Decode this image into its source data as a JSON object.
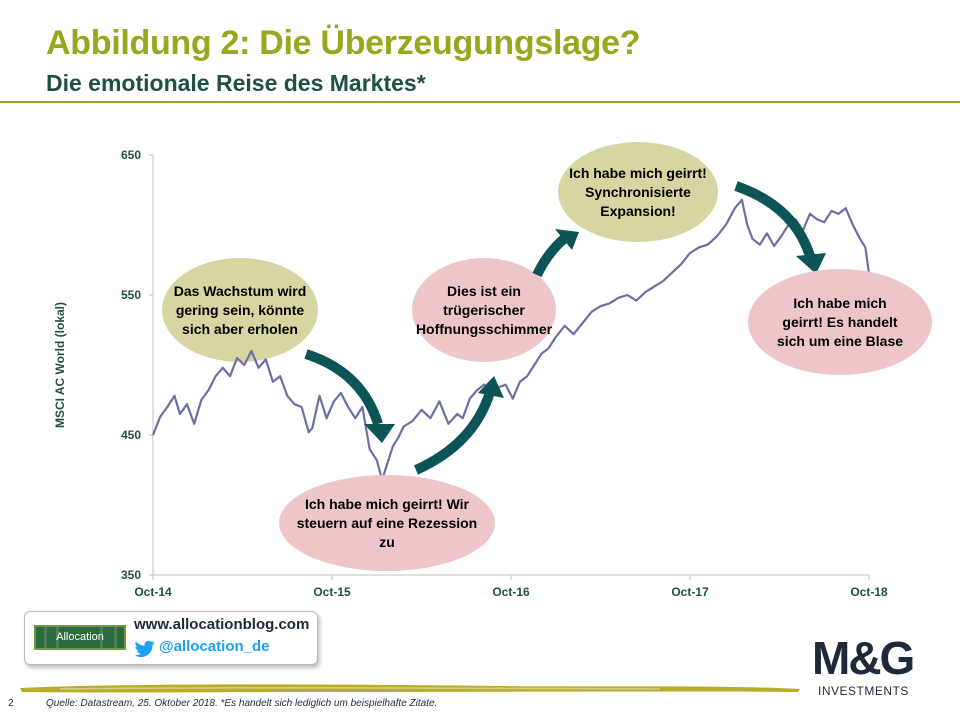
{
  "page": {
    "title": "Abbildung 2: Die Überzeugungslage?",
    "subtitle": "Die emotionale Reise des Marktes*",
    "page_number": "2",
    "source_note": "Quelle: Datastream, 25. Oktober 2018. *Es handelt sich lediglich um beispielhafte Zitate."
  },
  "footer": {
    "blog_url": "www.allocationblog.com",
    "twitter_handle": "@allocation_de",
    "allocation_logo_text": "Allocation",
    "brand_logo_text": "M&G",
    "brand_logo_subtext": "INVESTMENTS"
  },
  "colors": {
    "title": "#9aa61e",
    "subtitle": "#1f5046",
    "line": "#6b6fa3",
    "axis_label": "#1f5046",
    "arrow": "#0d5457",
    "bubble_olive": "#d7d6a2",
    "bubble_pink": "#efc6c8"
  },
  "chart_data": {
    "type": "line",
    "ylabel": "MSCI AC World (lokal)",
    "xlabel": "",
    "ylim": [
      350,
      650
    ],
    "yticks": [
      350,
      450,
      550,
      650
    ],
    "xticks": [
      "Oct-14",
      "Oct-15",
      "Oct-16",
      "Oct-17",
      "Oct-18"
    ],
    "x_range": [
      2014.75,
      2018.75
    ],
    "grid": false,
    "series": [
      {
        "x": [
          2014.75,
          2014.79,
          2014.83,
          2014.87,
          2014.9,
          2014.94,
          2014.98,
          2015.02,
          2015.06,
          2015.1,
          2015.14,
          2015.18,
          2015.22,
          2015.26,
          2015.3,
          2015.34,
          2015.38,
          2015.42,
          2015.46,
          2015.5,
          2015.54,
          2015.58,
          2015.62,
          2015.64,
          2015.68,
          2015.72,
          2015.76,
          2015.8,
          2015.84,
          2015.88,
          2015.92,
          2015.96,
          2016.0,
          2016.03,
          2016.06,
          2016.09,
          2016.12,
          2016.15,
          2016.2,
          2016.25,
          2016.3,
          2016.35,
          2016.4,
          2016.45,
          2016.48,
          2016.52,
          2016.56,
          2016.6,
          2016.64,
          2016.68,
          2016.72,
          2016.76,
          2016.8,
          2016.84,
          2016.88,
          2016.92,
          2016.96,
          2017.0,
          2017.05,
          2017.1,
          2017.15,
          2017.2,
          2017.25,
          2017.3,
          2017.35,
          2017.4,
          2017.45,
          2017.5,
          2017.55,
          2017.6,
          2017.65,
          2017.7,
          2017.75,
          2017.8,
          2017.85,
          2017.9,
          2017.95,
          2018.0,
          2018.04,
          2018.07,
          2018.1,
          2018.14,
          2018.18,
          2018.22,
          2018.26,
          2018.3,
          2018.34,
          2018.38,
          2018.42,
          2018.46,
          2018.5,
          2018.54,
          2018.58,
          2018.62,
          2018.66,
          2018.7,
          2018.73,
          2018.75
        ],
        "y": [
          450,
          463,
          470,
          478,
          465,
          472,
          458,
          475,
          482,
          492,
          498,
          492,
          505,
          500,
          510,
          498,
          504,
          488,
          492,
          478,
          472,
          470,
          452,
          455,
          478,
          462,
          474,
          480,
          470,
          462,
          470,
          440,
          432,
          418,
          430,
          442,
          448,
          456,
          460,
          468,
          462,
          474,
          458,
          465,
          462,
          476,
          482,
          486,
          482,
          484,
          486,
          476,
          488,
          492,
          500,
          508,
          512,
          520,
          528,
          522,
          530,
          538,
          542,
          544,
          548,
          550,
          546,
          552,
          556,
          560,
          566,
          572,
          580,
          584,
          586,
          592,
          600,
          612,
          618,
          600,
          590,
          586,
          594,
          585,
          592,
          600,
          604,
          596,
          608,
          604,
          602,
          610,
          608,
          612,
          600,
          590,
          584,
          565
        ]
      }
    ],
    "annotations": [
      {
        "id": "bubble-1",
        "text": [
          "Das Wachstum  wird",
          "gering sein, könnte",
          "sich aber erholen"
        ],
        "style": "olive"
      },
      {
        "id": "bubble-2",
        "text": [
          "Ich habe mich geirrt!  Wir",
          "steuern auf eine Rezession",
          "zu"
        ],
        "style": "pink"
      },
      {
        "id": "bubble-3",
        "text": [
          "Dies ist ein",
          "trügerischer",
          "Hoffnungsschimmer"
        ],
        "style": "pink"
      },
      {
        "id": "bubble-4",
        "text": [
          "Ich habe mich geirrt!",
          "Synchronisierte",
          "Expansion!"
        ],
        "style": "olive"
      },
      {
        "id": "bubble-5",
        "text": [
          "Ich habe mich",
          "geirrt!  Es handelt",
          "sich um eine Blase"
        ],
        "style": "pink"
      }
    ]
  }
}
